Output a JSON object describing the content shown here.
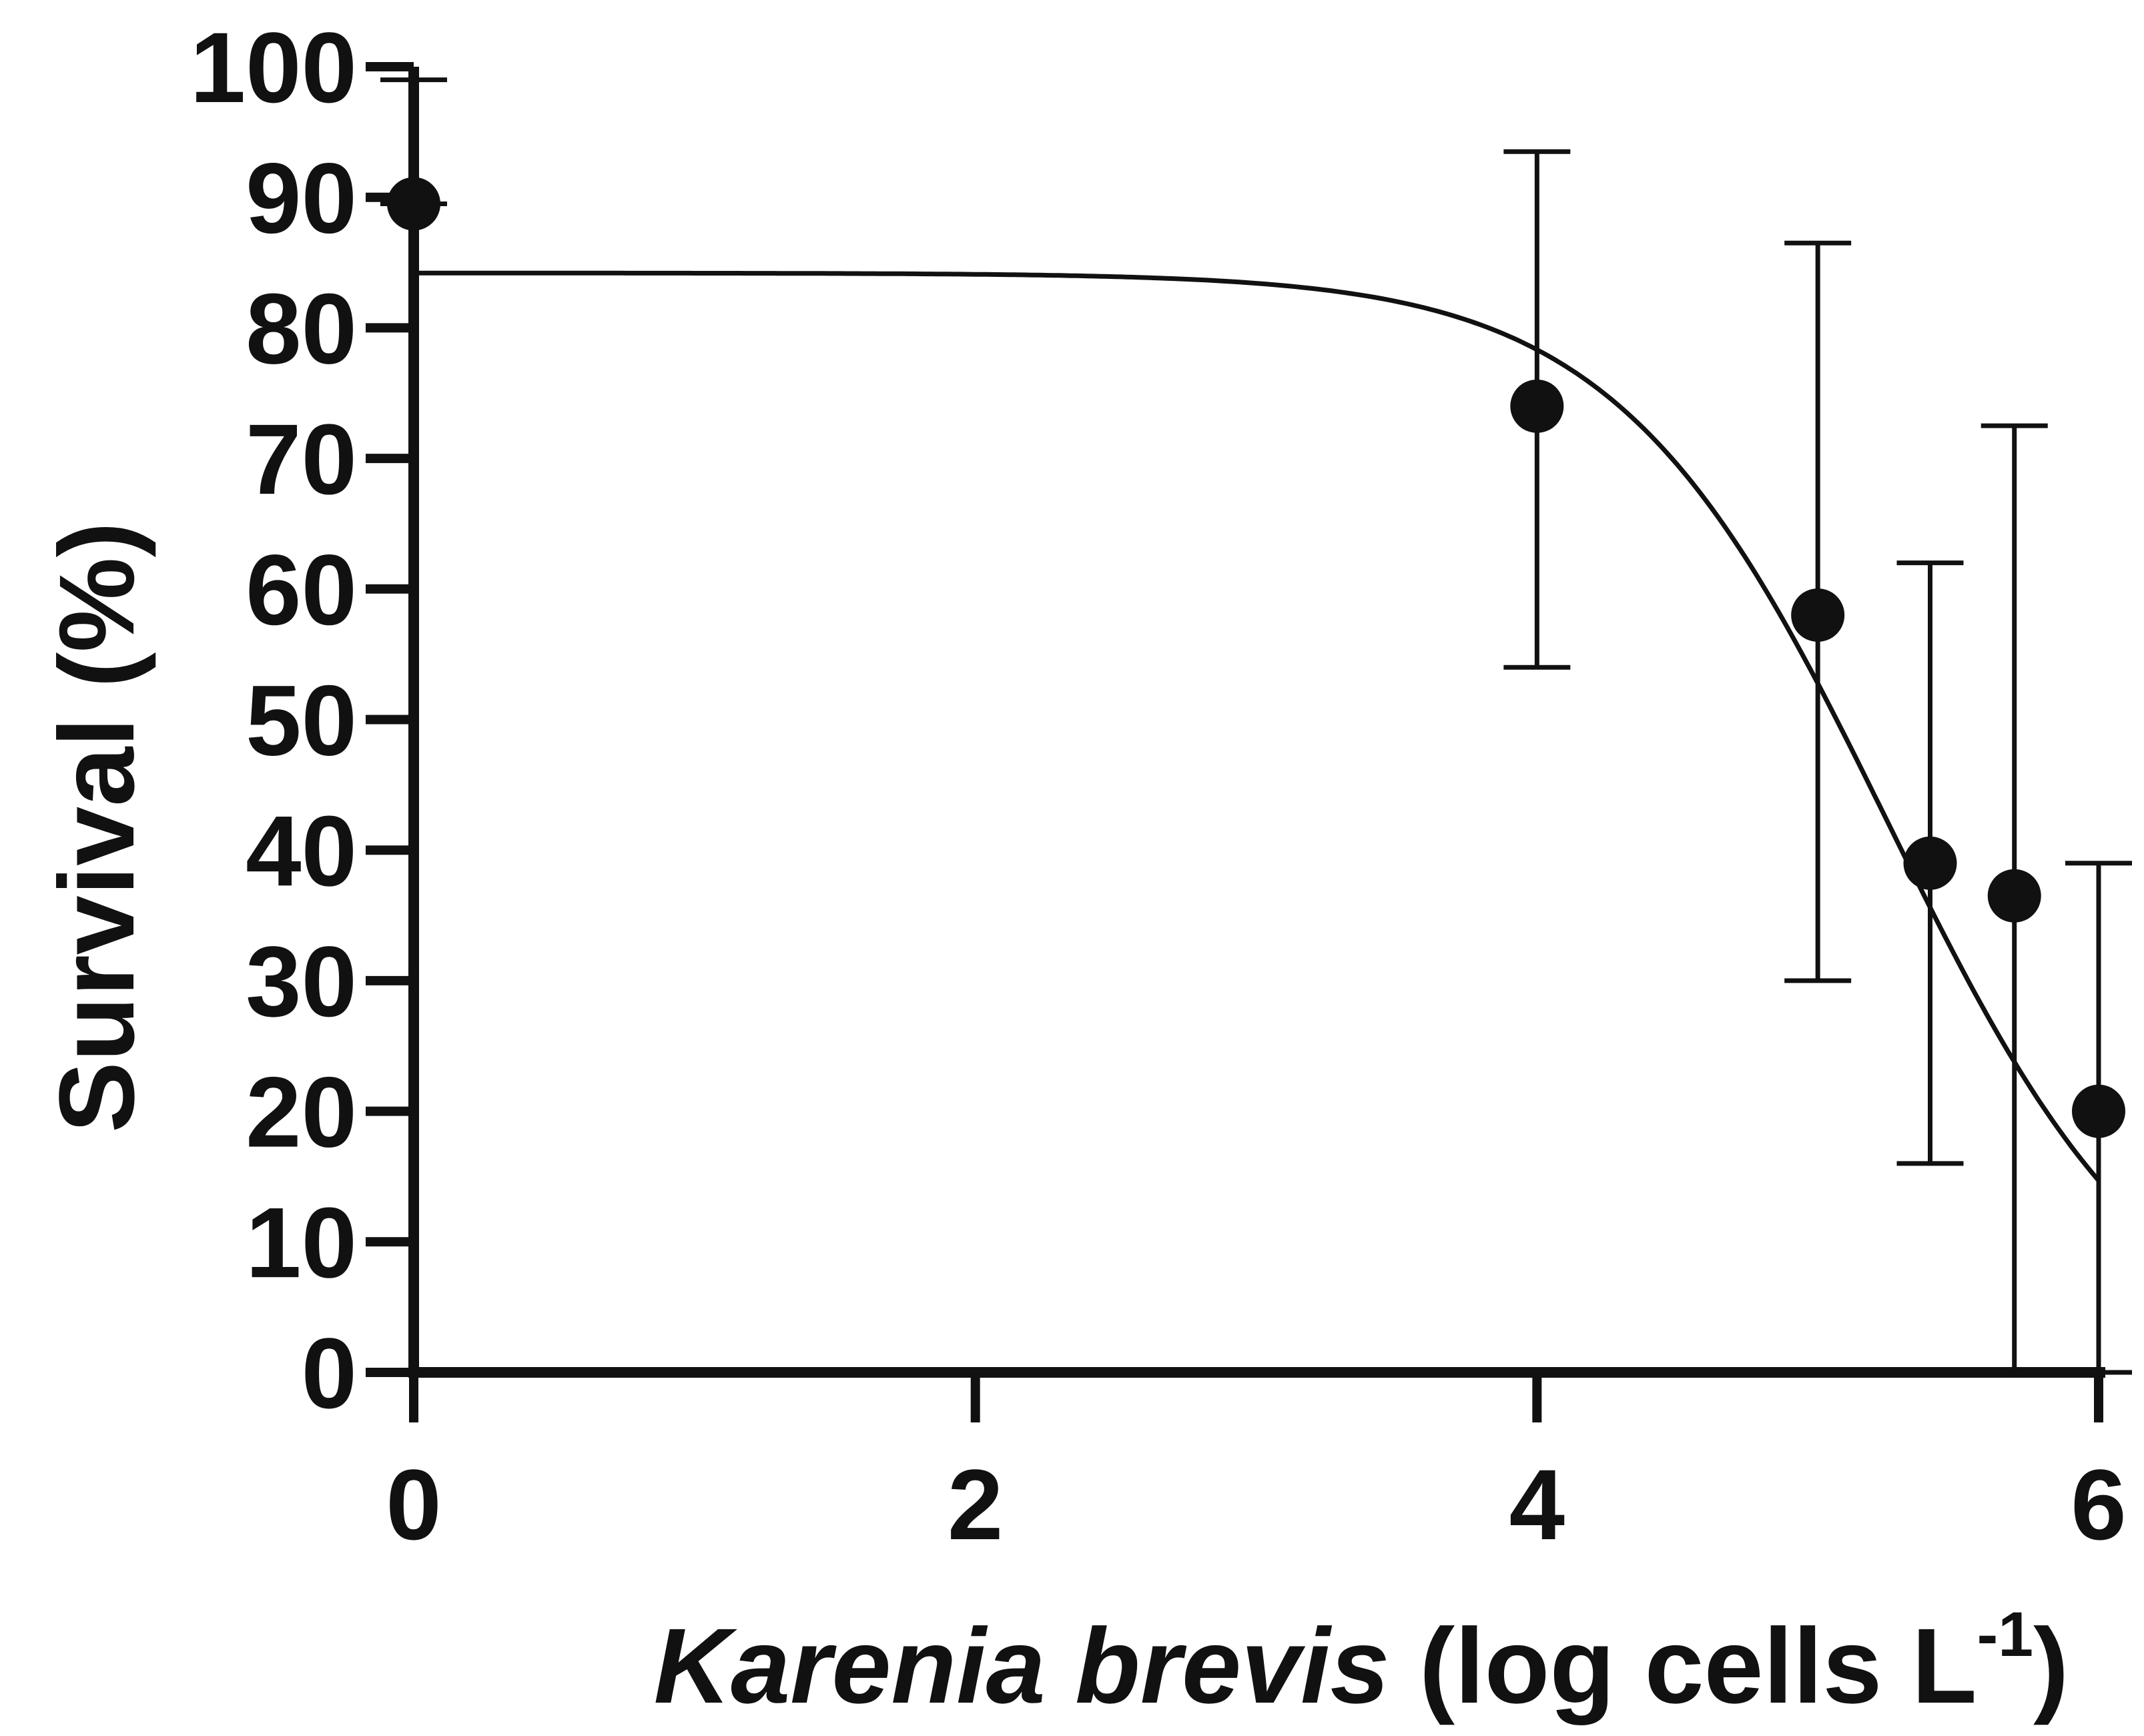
{
  "chart_data": {
    "type": "scatter",
    "title": "",
    "xlabel": {
      "italic": "Karenia brevis",
      "rest": " (log cells L",
      "superscript": "-1",
      "close": ")"
    },
    "ylabel": "Survival (%)",
    "xlim": [
      0,
      6
    ],
    "ylim": [
      0,
      100
    ],
    "x_ticks": [
      "0",
      "2",
      "4",
      "6"
    ],
    "y_ticks": [
      "0",
      "10",
      "20",
      "30",
      "40",
      "50",
      "60",
      "70",
      "80",
      "90",
      "100"
    ],
    "grid": false,
    "legend": "none",
    "points": [
      {
        "x": 0.0,
        "y": 89.5,
        "err_low": 89.5,
        "err_high": 99.0
      },
      {
        "x": 4.0,
        "y": 74.0,
        "err_low": 54.0,
        "err_high": 93.5
      },
      {
        "x": 5.0,
        "y": 58.0,
        "err_low": 30.0,
        "err_high": 86.5
      },
      {
        "x": 5.4,
        "y": 39.0,
        "err_low": 16.0,
        "err_high": 62.0
      },
      {
        "x": 5.7,
        "y": 36.5,
        "err_low": 0.0,
        "err_high": 72.5
      },
      {
        "x": 6.0,
        "y": 20.0,
        "err_low": 0.0,
        "err_high": 39.0
      }
    ],
    "fit_curve": {
      "type": "sigmoid",
      "top": 84.2,
      "bottom": 0,
      "ec50_log": 5.25,
      "hill": -0.9
    }
  }
}
